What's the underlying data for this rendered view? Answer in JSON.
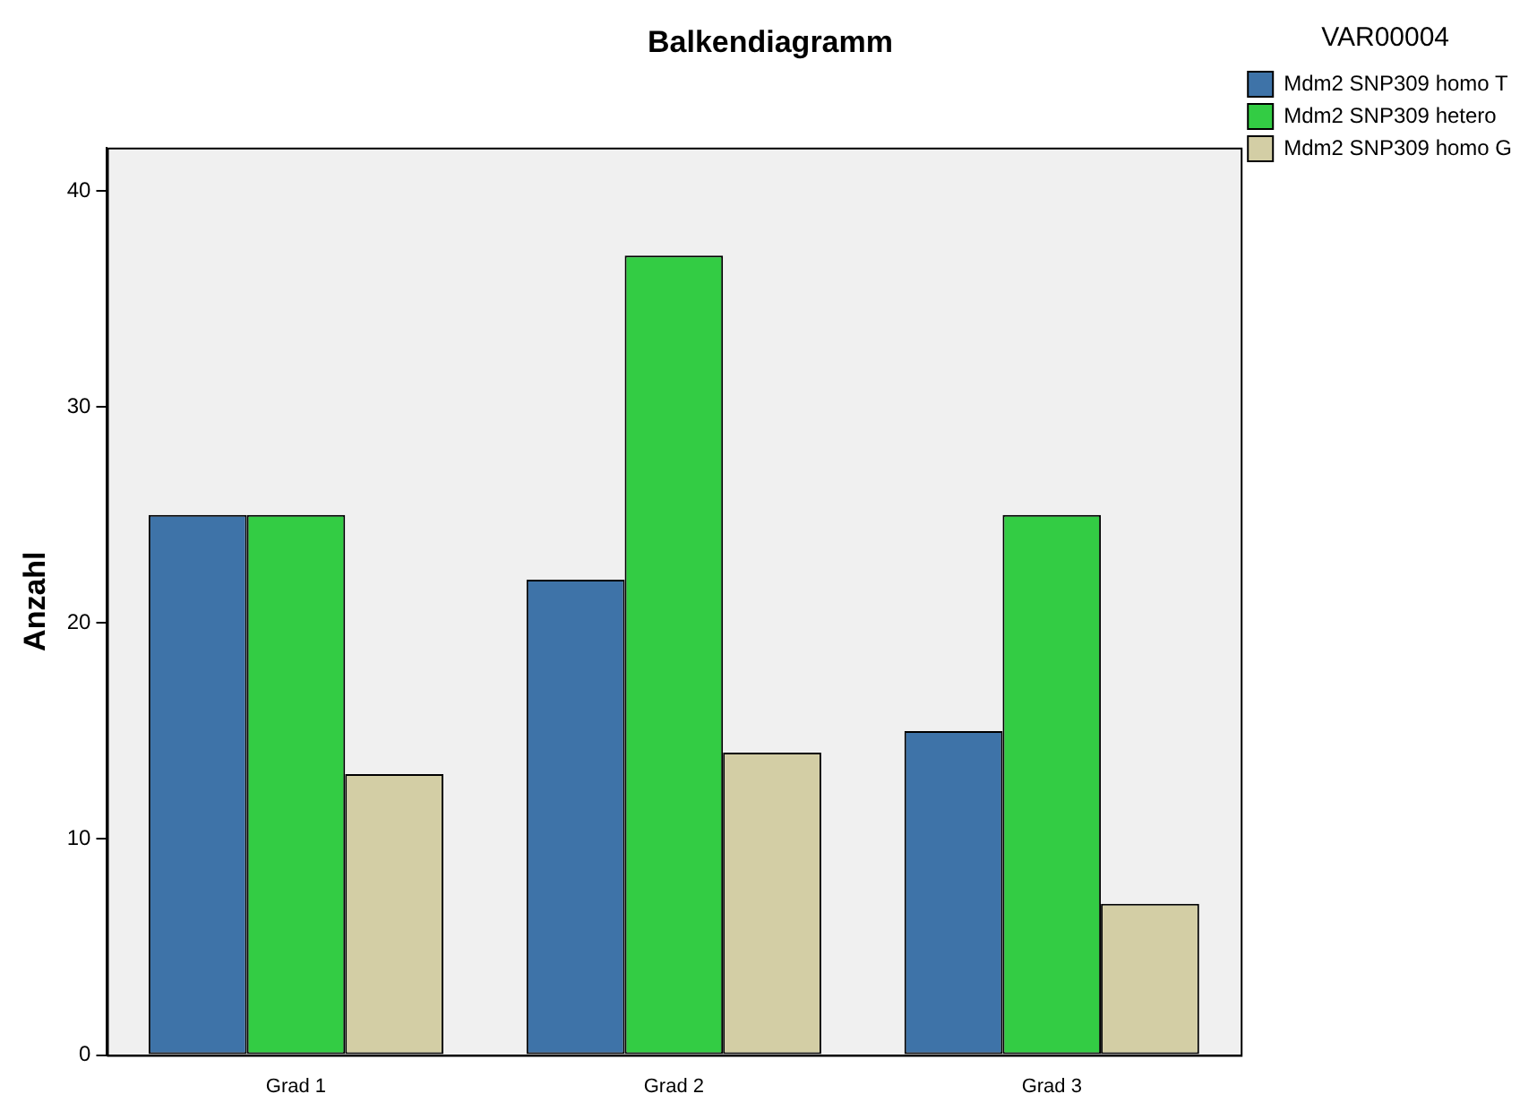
{
  "chart_data": {
    "type": "bar",
    "title": "Balkendiagramm",
    "ylabel": "Anzahl",
    "legend_title": "VAR00004",
    "categories": [
      "Grad 1",
      "Grad 2",
      "Grad 3"
    ],
    "series": [
      {
        "name": "Mdm2 SNP309 homo T",
        "color": "#3e73a8",
        "values": [
          25,
          22,
          15
        ]
      },
      {
        "name": "Mdm2 SNP309 hetero",
        "color": "#33cc44",
        "values": [
          25,
          37,
          25
        ]
      },
      {
        "name": "Mdm2 SNP309 homo G",
        "color": "#d3cea5",
        "values": [
          13,
          14,
          7
        ]
      }
    ],
    "ylim": [
      0,
      42
    ],
    "yticks": [
      0,
      10,
      20,
      30,
      40
    ],
    "grid": false,
    "legend": "top right"
  }
}
